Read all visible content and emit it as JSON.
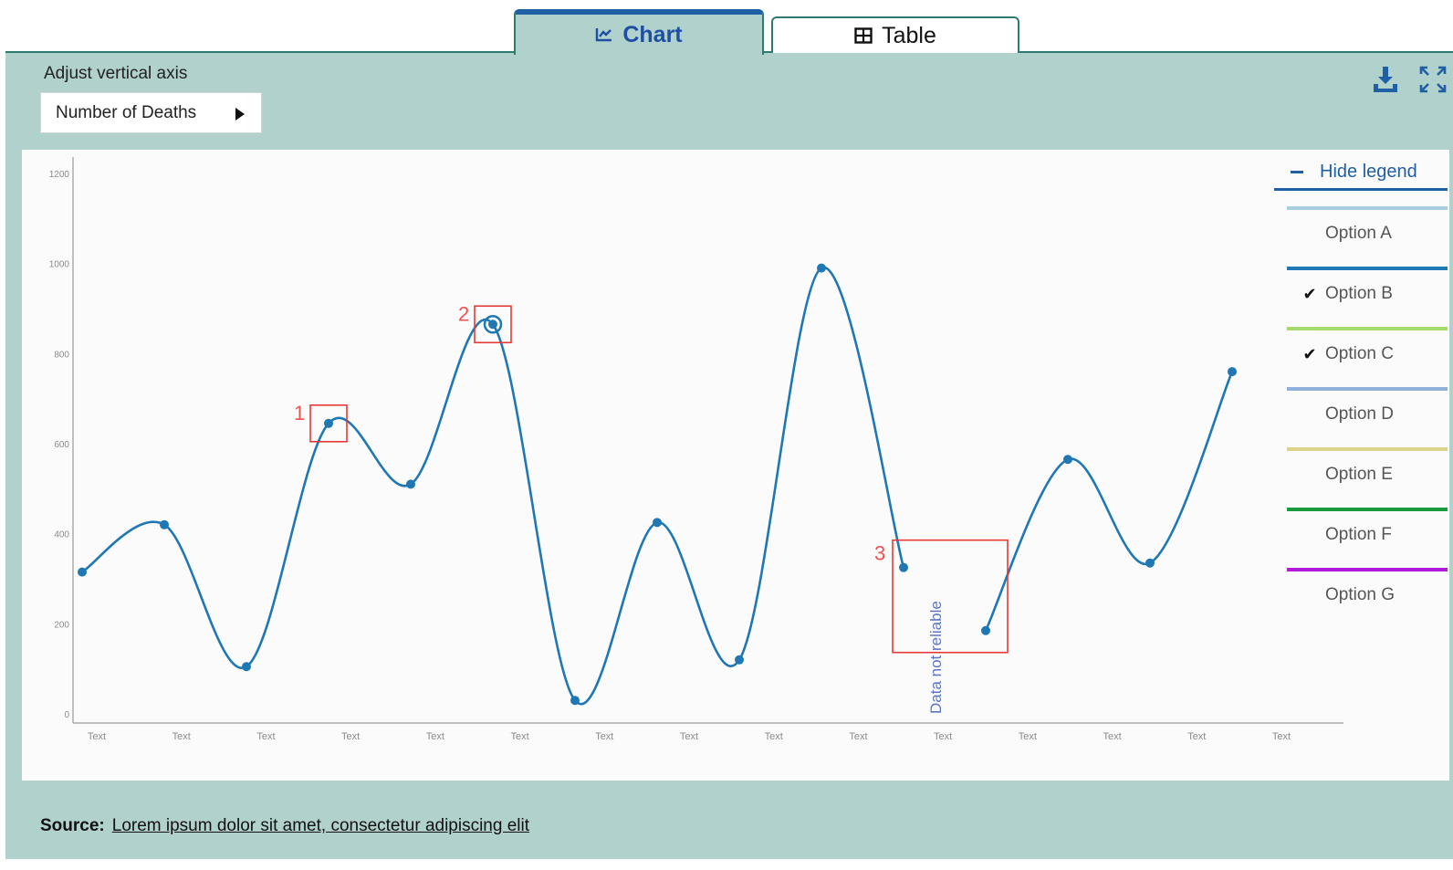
{
  "tabs": [
    {
      "label": "Chart",
      "icon": "line-chart-icon",
      "active": true
    },
    {
      "label": "Table",
      "icon": "table-icon",
      "active": false
    }
  ],
  "controls": {
    "axis_label": "Adjust vertical axis",
    "axis_value": "Number of Deaths"
  },
  "legend": {
    "hide_label": "Hide legend",
    "items": [
      {
        "label": "Option A",
        "color": "#a7cfe0",
        "checked": false,
        "check": ""
      },
      {
        "label": "Option B",
        "color": "#1f77b4",
        "checked": true,
        "check": "✔"
      },
      {
        "label": "Option C",
        "color": "#a6d96a",
        "checked": true,
        "check": "✔"
      },
      {
        "label": "Option D",
        "color": "#8fb0db",
        "checked": false,
        "check": ""
      },
      {
        "label": "Option E",
        "color": "#dcd28a",
        "checked": false,
        "check": ""
      },
      {
        "label": "Option F",
        "color": "#1a9a3a",
        "checked": false,
        "check": ""
      },
      {
        "label": "Option G",
        "color": "#b21ad9",
        "checked": false,
        "check": ""
      }
    ]
  },
  "chart_data": {
    "type": "line",
    "ylim": [
      0,
      1200
    ],
    "yticks": [
      "0",
      "200",
      "400",
      "600",
      "800",
      "1000",
      "1200"
    ],
    "categories": [
      "Text",
      "Text",
      "Text",
      "Text",
      "Text",
      "Text",
      "Text",
      "Text",
      "Text",
      "Text",
      "Text",
      "Text",
      "Text",
      "Text",
      "Text"
    ],
    "series": [
      {
        "name": "Option B",
        "color": "#1f77b4",
        "values": [
          315,
          420,
          105,
          645,
          510,
          865,
          30,
          425,
          120,
          990,
          325,
          185,
          565,
          335,
          760
        ]
      }
    ],
    "annotations": [
      {
        "label": "1",
        "point_index": 3
      },
      {
        "label": "2",
        "point_index": 5
      },
      {
        "label": "3",
        "point_index": 10,
        "point_index_end": 11
      }
    ],
    "note": "Data not reliable"
  },
  "source": {
    "label": "Source:",
    "text": "Lorem ipsum dolor sit amet, consectetur adipiscing elit"
  }
}
